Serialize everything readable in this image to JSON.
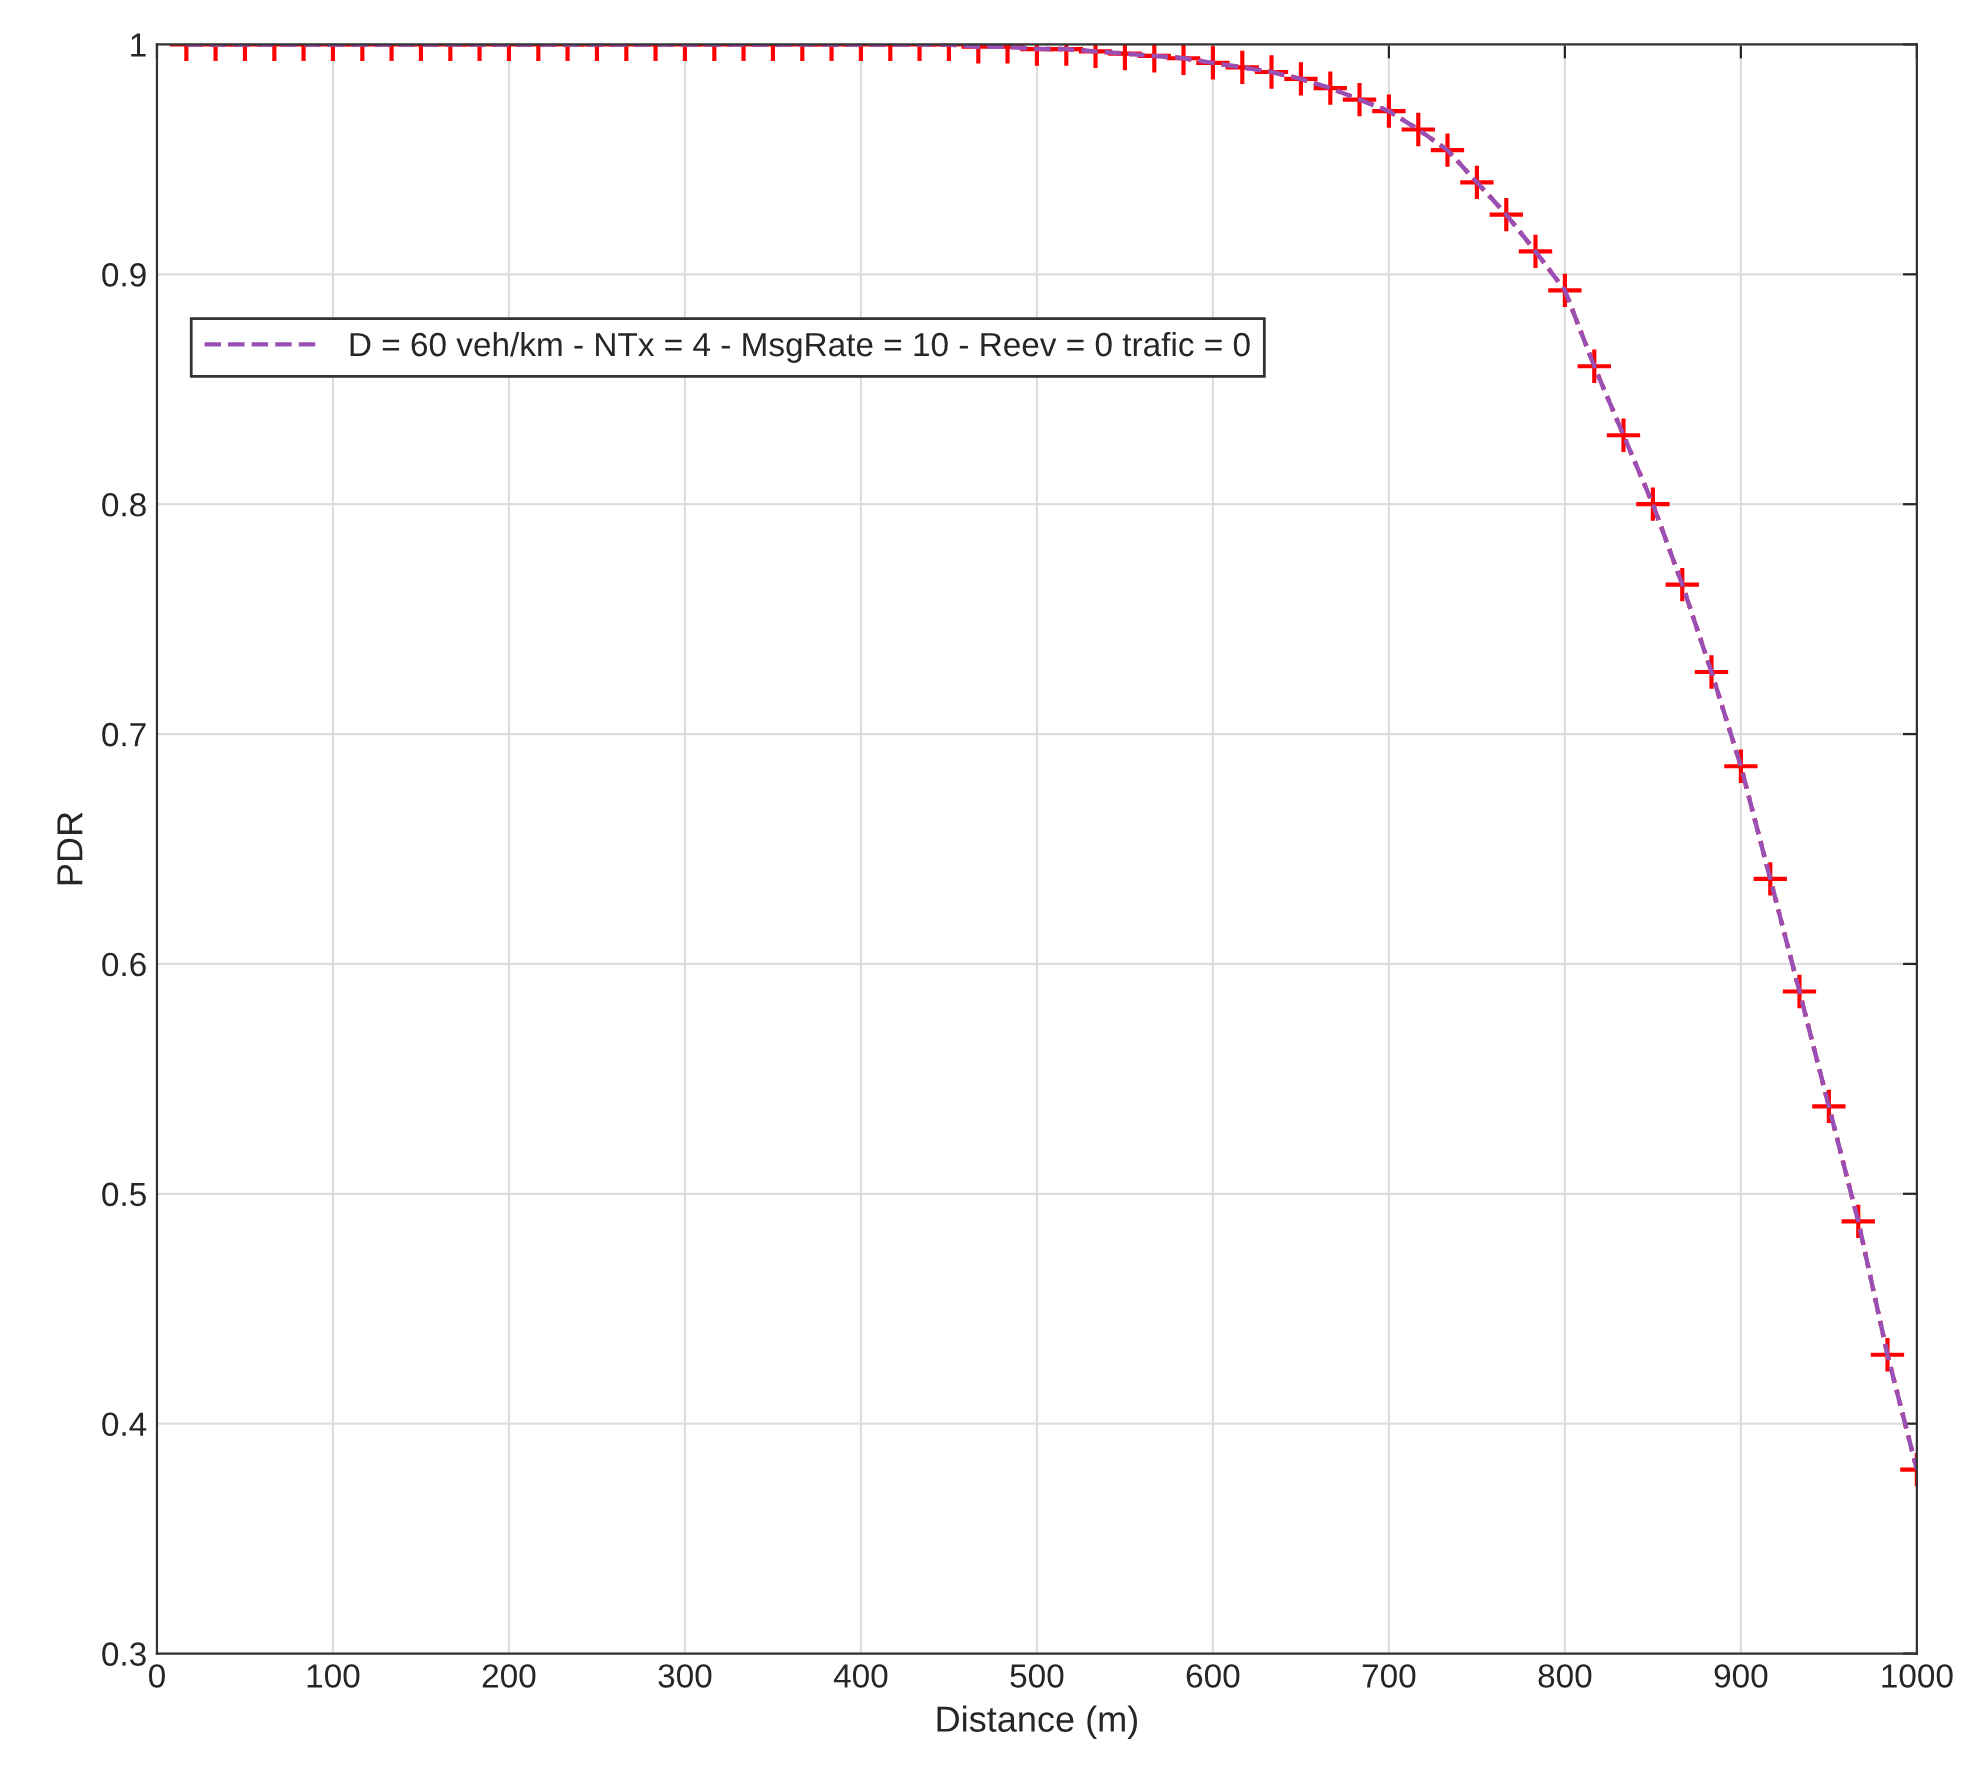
{
  "chart_data": {
    "type": "line",
    "xlabel": "Distance (m)",
    "ylabel": "PDR",
    "xlim": [
      0,
      1000
    ],
    "ylim": [
      0.3,
      1
    ],
    "xticks": [
      0,
      100,
      200,
      300,
      400,
      500,
      600,
      700,
      800,
      900,
      1000
    ],
    "yticks": [
      0.3,
      0.4,
      0.5,
      0.6,
      0.7,
      0.8,
      0.9,
      1
    ],
    "grid": true,
    "legend": "top left",
    "x": [
      16.7,
      33.3,
      50,
      66.7,
      83.3,
      100,
      116.7,
      133.3,
      150,
      166.7,
      183.3,
      200,
      216.7,
      233.3,
      250,
      266.7,
      283.3,
      300,
      316.7,
      333.3,
      350,
      366.7,
      383.3,
      400,
      416.7,
      433.3,
      450,
      466.7,
      483.3,
      500,
      516.7,
      533.3,
      550,
      566.7,
      583.3,
      600,
      616.7,
      633.3,
      650,
      666.7,
      683.3,
      700,
      716.7,
      733.3,
      750,
      766.7,
      783.3,
      800,
      816.7,
      833.3,
      850,
      866.7,
      883.3,
      900,
      916.7,
      933.3,
      950,
      966.7,
      983.3,
      1000
    ],
    "series": [
      {
        "color": "#ff0000",
        "line_style": "dotted",
        "marker": "cross",
        "values": [
          1,
          1,
          1,
          1,
          1,
          1,
          1,
          1,
          1,
          1,
          1,
          1,
          1,
          1,
          1,
          1,
          1,
          1,
          1,
          1,
          1,
          1,
          1,
          1,
          1,
          1,
          1,
          0.999,
          0.999,
          0.998,
          0.998,
          0.997,
          0.996,
          0.995,
          0.994,
          0.992,
          0.99,
          0.988,
          0.985,
          0.981,
          0.976,
          0.971,
          0.963,
          0.954,
          0.94,
          0.926,
          0.91,
          0.893,
          0.86,
          0.83,
          0.8,
          0.765,
          0.727,
          0.686,
          0.637,
          0.588,
          0.538,
          0.488,
          0.43,
          0.38
        ]
      },
      {
        "name": "D = 60 veh/km - NTx = 4 - MsgRate = 10 - Reev = 0 trafic = 0",
        "color": "#9a4fb5",
        "line_style": "dashed",
        "marker": "none",
        "values": [
          1,
          1,
          1,
          1,
          1,
          1,
          1,
          1,
          1,
          1,
          1,
          1,
          1,
          1,
          1,
          1,
          1,
          1,
          1,
          1,
          1,
          1,
          1,
          1,
          1,
          1,
          1,
          0.999,
          0.999,
          0.998,
          0.998,
          0.997,
          0.996,
          0.995,
          0.994,
          0.992,
          0.99,
          0.988,
          0.985,
          0.981,
          0.976,
          0.971,
          0.963,
          0.954,
          0.94,
          0.926,
          0.91,
          0.893,
          0.86,
          0.83,
          0.8,
          0.765,
          0.727,
          0.686,
          0.637,
          0.588,
          0.538,
          0.488,
          0.43,
          0.38
        ]
      }
    ]
  }
}
